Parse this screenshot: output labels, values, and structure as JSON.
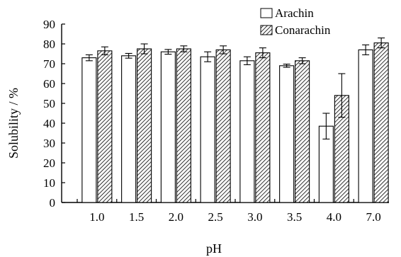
{
  "chart_data": {
    "type": "bar",
    "title": "",
    "xlabel": "pH",
    "ylabel": "Solubility / %",
    "ylim": [
      0,
      90
    ],
    "yticks": [
      0,
      10,
      20,
      30,
      40,
      50,
      60,
      70,
      80,
      90
    ],
    "categories": [
      "1.0",
      "1.5",
      "2.0",
      "2.5",
      "3.0",
      "3.5",
      "4.0",
      "7.0"
    ],
    "grid": false,
    "legend_position": "top-right",
    "series": [
      {
        "name": "Arachin",
        "pattern": "solid-white",
        "values": [
          73,
          74,
          76,
          73.5,
          71.5,
          69,
          38.5,
          77
        ],
        "errors": [
          1.5,
          1.2,
          1.2,
          2.5,
          2.0,
          0.8,
          6.5,
          2.5
        ]
      },
      {
        "name": "Conarachin",
        "pattern": "hatched",
        "values": [
          76.5,
          77.5,
          77.5,
          77,
          75.5,
          71.5,
          54,
          80.5
        ],
        "errors": [
          2.0,
          2.5,
          1.5,
          2.0,
          2.5,
          1.5,
          11,
          2.5
        ]
      }
    ],
    "colors": {
      "axis": "#000000",
      "bar_fill": "#ffffff",
      "hatch": "#000000"
    }
  }
}
